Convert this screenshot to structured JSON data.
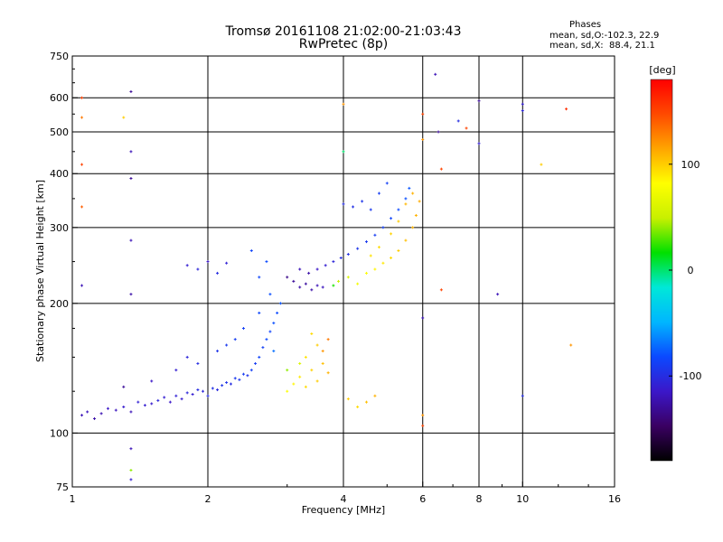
{
  "header": {
    "title_line1": "Tromsø 20161108 21:02:00-21:03:43",
    "title_line2": "RwPretec (8p)",
    "phases_heading": "Phases",
    "phases_o": "mean, sd,O:-102.3, 22.9",
    "phases_x": "mean, sd,X:  88.4, 21.1"
  },
  "colors": {
    "background": "#ffffff",
    "grid": "#000000",
    "colorbar_stops": [
      "#000000",
      "#3a0062",
      "#3b17c9",
      "#0b49ff",
      "#00b6ff",
      "#00e8d8",
      "#00e000",
      "#c8f000",
      "#ffff00",
      "#ffa500",
      "#ff4a00",
      "#ff0000"
    ]
  },
  "colorbar": {
    "unit": "[deg]",
    "tick_labels": [
      "100",
      "0",
      "-100"
    ],
    "tick_values": [
      100,
      0,
      -100
    ],
    "range": [
      -180,
      180
    ]
  },
  "chart_data": {
    "type": "scatter",
    "title": "",
    "xlabel": "Frequency [MHz]",
    "ylabel": "Stationary phase Virtual Height [km]",
    "xscale": "log",
    "yscale": "log",
    "xlim": [
      1,
      16
    ],
    "ylim": [
      75,
      750
    ],
    "x_tick_values": [
      1,
      2,
      4,
      6,
      8,
      10,
      16
    ],
    "x_tick_labels": [
      "1",
      "2",
      "4",
      "6",
      "8",
      "10",
      "16"
    ],
    "y_tick_values": [
      75,
      100,
      200,
      300,
      400,
      500,
      600,
      750
    ],
    "y_tick_labels": [
      "75",
      "100",
      "200",
      "300",
      "400",
      "500",
      "600",
      "750"
    ],
    "grid": true,
    "color_encodes": "phase [deg]",
    "series": [
      {
        "points": [
          [
            1.05,
            110,
            -120
          ],
          [
            1.08,
            112,
            -118
          ],
          [
            1.12,
            108,
            -125
          ],
          [
            1.16,
            111,
            -122
          ],
          [
            1.2,
            114,
            -115
          ],
          [
            1.25,
            113,
            -118
          ],
          [
            1.3,
            115,
            -112
          ],
          [
            1.35,
            112,
            -120
          ],
          [
            1.4,
            118,
            -108
          ],
          [
            1.45,
            116,
            -110
          ],
          [
            1.5,
            117,
            -112
          ],
          [
            1.55,
            119,
            -105
          ],
          [
            1.6,
            121,
            -110
          ],
          [
            1.65,
            118,
            -115
          ],
          [
            1.7,
            122,
            -108
          ],
          [
            1.75,
            120,
            -112
          ],
          [
            1.8,
            124,
            -104
          ],
          [
            1.85,
            123,
            -110
          ],
          [
            1.9,
            126,
            -100
          ],
          [
            1.95,
            125,
            -105
          ],
          [
            2.0,
            122,
            -100
          ],
          [
            2.05,
            127,
            -98
          ],
          [
            2.1,
            126,
            -102
          ],
          [
            2.15,
            129,
            -95
          ],
          [
            2.2,
            131,
            -96
          ],
          [
            2.25,
            130,
            -100
          ],
          [
            2.3,
            134,
            -92
          ],
          [
            2.35,
            133,
            -95
          ],
          [
            2.4,
            137,
            -90
          ],
          [
            2.45,
            136,
            -96
          ],
          [
            2.5,
            140,
            -88
          ],
          [
            2.55,
            145,
            -90
          ],
          [
            2.6,
            150,
            -85
          ],
          [
            2.65,
            158,
            -88
          ],
          [
            2.7,
            165,
            -82
          ],
          [
            2.75,
            172,
            -85
          ],
          [
            2.8,
            180,
            -80
          ],
          [
            2.85,
            190,
            -82
          ],
          [
            2.9,
            200,
            -78
          ],
          [
            2.75,
            210,
            -80
          ],
          [
            2.6,
            230,
            -84
          ],
          [
            2.7,
            250,
            -82
          ],
          [
            2.5,
            265,
            -85
          ],
          [
            2.8,
            155,
            -70
          ],
          [
            1.3,
            128,
            -130
          ],
          [
            1.5,
            132,
            -115
          ],
          [
            1.7,
            140,
            -110
          ],
          [
            1.8,
            150,
            -105
          ],
          [
            1.9,
            145,
            -100
          ],
          [
            2.1,
            155,
            -95
          ],
          [
            2.2,
            160,
            -92
          ],
          [
            2.3,
            165,
            -90
          ],
          [
            2.4,
            175,
            -88
          ],
          [
            2.6,
            190,
            -84
          ],
          [
            1.8,
            245,
            -110
          ],
          [
            1.9,
            240,
            -105
          ],
          [
            2.0,
            250,
            -115
          ],
          [
            2.1,
            235,
            -100
          ],
          [
            2.2,
            248,
            -108
          ],
          [
            3.0,
            230,
            -135
          ],
          [
            3.1,
            225,
            -130
          ],
          [
            3.2,
            218,
            -125
          ],
          [
            3.3,
            222,
            -128
          ],
          [
            3.4,
            215,
            -125
          ],
          [
            3.5,
            220,
            -120
          ],
          [
            3.6,
            218,
            -118
          ],
          [
            3.2,
            240,
            -120
          ],
          [
            3.35,
            235,
            -125
          ],
          [
            3.5,
            240,
            -115
          ],
          [
            3.65,
            245,
            -110
          ],
          [
            3.8,
            250,
            -105
          ],
          [
            3.95,
            255,
            -100
          ],
          [
            4.1,
            260,
            -98
          ],
          [
            4.3,
            268,
            -95
          ],
          [
            4.5,
            278,
            -92
          ],
          [
            4.7,
            288,
            -90
          ],
          [
            4.9,
            300,
            -88
          ],
          [
            5.1,
            315,
            -85
          ],
          [
            5.3,
            330,
            -82
          ],
          [
            5.5,
            350,
            -80
          ],
          [
            5.6,
            370,
            -78
          ],
          [
            4.0,
            340,
            -100
          ],
          [
            4.2,
            335,
            -98
          ],
          [
            4.4,
            345,
            -95
          ],
          [
            4.6,
            330,
            -92
          ],
          [
            4.8,
            360,
            -90
          ],
          [
            5.0,
            380,
            -88
          ],
          [
            3.9,
            225,
            50
          ],
          [
            4.1,
            230,
            60
          ],
          [
            4.3,
            222,
            75
          ],
          [
            4.5,
            235,
            80
          ],
          [
            4.7,
            240,
            85
          ],
          [
            4.9,
            248,
            90
          ],
          [
            5.1,
            255,
            95
          ],
          [
            5.3,
            265,
            100
          ],
          [
            5.5,
            280,
            105
          ],
          [
            5.7,
            300,
            108
          ],
          [
            5.8,
            320,
            110
          ],
          [
            5.9,
            345,
            112
          ],
          [
            5.7,
            360,
            110
          ],
          [
            5.5,
            340,
            108
          ],
          [
            5.3,
            310,
            100
          ],
          [
            5.1,
            290,
            98
          ],
          [
            4.8,
            270,
            95
          ],
          [
            4.6,
            258,
            92
          ],
          [
            3.8,
            220,
            20
          ],
          [
            3.0,
            125,
            80
          ],
          [
            3.1,
            130,
            85
          ],
          [
            3.2,
            135,
            90
          ],
          [
            3.3,
            128,
            95
          ],
          [
            3.4,
            140,
            98
          ],
          [
            3.5,
            132,
            100
          ],
          [
            3.6,
            145,
            105
          ],
          [
            3.7,
            138,
            110
          ],
          [
            3.3,
            150,
            92
          ],
          [
            3.5,
            160,
            100
          ],
          [
            3.4,
            170,
            95
          ],
          [
            3.6,
            155,
            120
          ],
          [
            3.7,
            165,
            130
          ],
          [
            3.2,
            145,
            60
          ],
          [
            3.0,
            140,
            40
          ],
          [
            4.5,
            118,
            105
          ],
          [
            4.7,
            122,
            110
          ],
          [
            4.3,
            115,
            95
          ],
          [
            4.1,
            120,
            100
          ],
          [
            1.05,
            600,
            150
          ],
          [
            1.05,
            540,
            130
          ],
          [
            1.05,
            420,
            150
          ],
          [
            1.05,
            335,
            140
          ],
          [
            1.05,
            220,
            -120
          ],
          [
            1.35,
            620,
            -130
          ],
          [
            1.35,
            450,
            -120
          ],
          [
            1.35,
            390,
            -130
          ],
          [
            1.35,
            280,
            -120
          ],
          [
            1.35,
            210,
            -125
          ],
          [
            1.35,
            92,
            -120
          ],
          [
            1.35,
            82,
            40
          ],
          [
            1.35,
            78,
            -110
          ],
          [
            1.3,
            540,
            100
          ],
          [
            6.0,
            550,
            150
          ],
          [
            6.0,
            480,
            120
          ],
          [
            6.0,
            185,
            -120
          ],
          [
            6.0,
            104,
            150
          ],
          [
            6.0,
            110,
            120
          ],
          [
            6.4,
            680,
            -120
          ],
          [
            6.5,
            500,
            -130
          ],
          [
            6.6,
            410,
            150
          ],
          [
            6.6,
            215,
            150
          ],
          [
            7.2,
            530,
            -100
          ],
          [
            7.5,
            510,
            150
          ],
          [
            8.0,
            590,
            -130
          ],
          [
            8.0,
            470,
            -110
          ],
          [
            8.8,
            210,
            -120
          ],
          [
            10.0,
            580,
            -110
          ],
          [
            10.0,
            560,
            -105
          ],
          [
            10.0,
            122,
            -100
          ],
          [
            11.0,
            420,
            100
          ],
          [
            12.5,
            565,
            160
          ],
          [
            12.8,
            160,
            120
          ],
          [
            4.0,
            580,
            120
          ],
          [
            4.0,
            450,
            0
          ]
        ]
      }
    ]
  }
}
